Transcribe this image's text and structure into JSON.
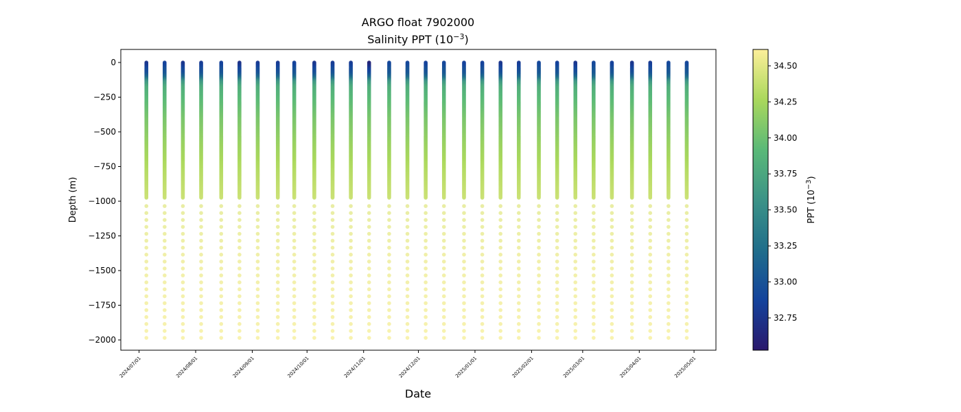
{
  "chart_data": {
    "type": "scatter",
    "title_line1": "ARGO float 7902000",
    "title_line2_prefix": "Salinity PPT (10",
    "title_line2_exp": "−3",
    "title_line2_suffix": ")",
    "xlabel": "Date",
    "ylabel": "Depth (m)",
    "colorbar_label_prefix": "PPT (10",
    "colorbar_label_exp": "−3",
    "colorbar_label_suffix": ")",
    "xlim": [
      "2024-06-21",
      "2025-05-13"
    ],
    "ylim": [
      -2074,
      94
    ],
    "clim": [
      32.526,
      34.614
    ],
    "grid": false,
    "colormap": [
      "#2a186c",
      "#14439c",
      "#206e8b",
      "#3c9387",
      "#5ab978",
      "#aad85c",
      "#fdef9a"
    ],
    "x_ticks": [
      "2024/07/01",
      "2024/08/01",
      "2024/09/01",
      "2024/10/01",
      "2024/11/01",
      "2024/12/01",
      "2025/01/01",
      "2025/02/01",
      "2025/03/01",
      "2025/04/01",
      "2025/05/01"
    ],
    "y_ticks": [
      0,
      -250,
      -500,
      -750,
      -1000,
      -1250,
      -1500,
      -1750,
      -2000
    ],
    "colorbar_ticks": [
      34.5,
      34.25,
      34.0,
      33.75,
      33.5,
      33.25,
      33.0,
      32.75
    ],
    "profile_dates": [
      "2024-07-05",
      "2024-07-15",
      "2024-07-25",
      "2024-08-04",
      "2024-08-15",
      "2024-08-25",
      "2024-09-04",
      "2024-09-15",
      "2024-09-24",
      "2024-10-05",
      "2024-10-15",
      "2024-10-25",
      "2024-11-04",
      "2024-11-15",
      "2024-11-25",
      "2024-12-05",
      "2024-12-15",
      "2024-12-26",
      "2025-01-05",
      "2025-01-15",
      "2025-01-25",
      "2025-02-05",
      "2025-02-15",
      "2025-02-25",
      "2025-03-07",
      "2025-03-17",
      "2025-03-28",
      "2025-04-07",
      "2025-04-17",
      "2025-04-27"
    ],
    "surface_salinity": [
      32.75,
      32.85,
      32.75,
      32.8,
      32.85,
      32.72,
      32.8,
      32.8,
      32.85,
      32.75,
      32.8,
      32.8,
      32.6,
      32.9,
      32.9,
      32.85,
      32.9,
      32.85,
      32.85,
      32.75,
      32.8,
      32.9,
      32.85,
      32.75,
      32.9,
      32.85,
      32.75,
      32.8,
      32.9,
      32.9
    ],
    "typical_profile": {
      "depth": [
        0,
        -25,
        -50,
        -80,
        -110,
        -140,
        -180,
        -250,
        -400,
        -600,
        -800,
        -975,
        -1035,
        -1500,
        -1985
      ],
      "salinity": [
        32.8,
        32.85,
        32.95,
        33.0,
        33.2,
        33.6,
        33.8,
        33.9,
        34.05,
        34.2,
        34.32,
        34.4,
        34.5,
        34.55,
        34.58
      ]
    }
  }
}
